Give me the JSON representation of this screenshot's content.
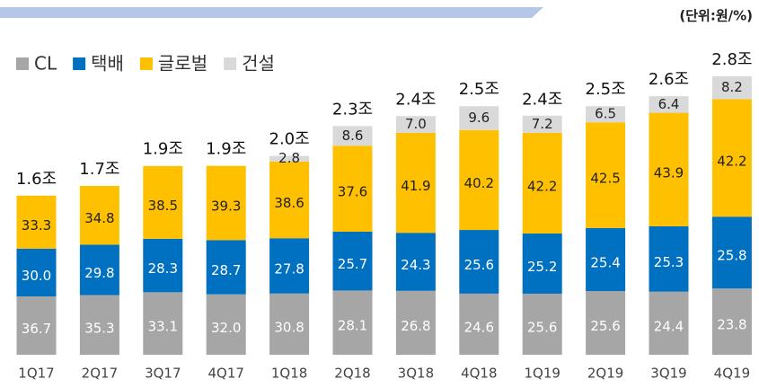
{
  "chart_data": {
    "type": "bar",
    "stacked": true,
    "subtitle": "(단위:원/%)",
    "categories": [
      "1Q17",
      "2Q17",
      "3Q17",
      "4Q17",
      "1Q18",
      "2Q18",
      "3Q18",
      "4Q18",
      "1Q19",
      "2Q19",
      "3Q19",
      "4Q19"
    ],
    "series": [
      {
        "name": "CL",
        "color": "#a6a6a6",
        "values": [
          36.7,
          35.3,
          33.1,
          32.0,
          30.8,
          28.1,
          26.8,
          24.6,
          25.6,
          25.6,
          24.4,
          23.8
        ],
        "value_labels": [
          "36.7",
          "35.3",
          "33.1",
          "32.0",
          "30.8",
          "28.1",
          "26.8",
          "24.6",
          "25.6",
          "25.6",
          "24.4",
          "23.8"
        ]
      },
      {
        "name": "택배",
        "color": "#0070c0",
        "values": [
          30.0,
          29.8,
          28.3,
          28.7,
          27.8,
          25.7,
          24.3,
          25.6,
          25.2,
          25.4,
          25.3,
          25.8
        ],
        "value_labels": [
          "30.0",
          "29.8",
          "28.3",
          "28.7",
          "27.8",
          "25.7",
          "24.3",
          "25.6",
          "25.2",
          "25.4",
          "25.3",
          "25.8"
        ]
      },
      {
        "name": "글로벌",
        "color": "#ffc000",
        "values": [
          33.3,
          34.8,
          38.5,
          39.3,
          38.6,
          37.6,
          41.9,
          40.2,
          42.2,
          42.5,
          43.9,
          42.2
        ],
        "value_labels": [
          "33.3",
          "34.8",
          "38.5",
          "39.3",
          "38.6",
          "37.6",
          "41.9",
          "40.2",
          "42.2",
          "42.5",
          "43.9",
          "42.2"
        ]
      },
      {
        "name": "건설",
        "color": "#d9d9d9",
        "values": [
          null,
          null,
          null,
          null,
          2.8,
          8.6,
          7.0,
          9.6,
          7.2,
          6.5,
          6.4,
          8.2
        ],
        "value_labels": [
          null,
          null,
          null,
          null,
          "2.8",
          "8.6",
          "7.0",
          "9.6",
          "7.2",
          "6.5",
          "6.4",
          "8.2"
        ]
      }
    ],
    "totals": {
      "values": [
        1.6,
        1.7,
        1.9,
        1.9,
        2.0,
        2.3,
        2.4,
        2.5,
        2.4,
        2.5,
        2.6,
        2.8
      ],
      "value_labels": [
        "1.6조",
        "1.7조",
        "1.9조",
        "1.9조",
        "2.0조",
        "2.3조",
        "2.4조",
        "2.5조",
        "2.4조",
        "2.5조",
        "2.6조",
        "2.8조"
      ]
    }
  }
}
